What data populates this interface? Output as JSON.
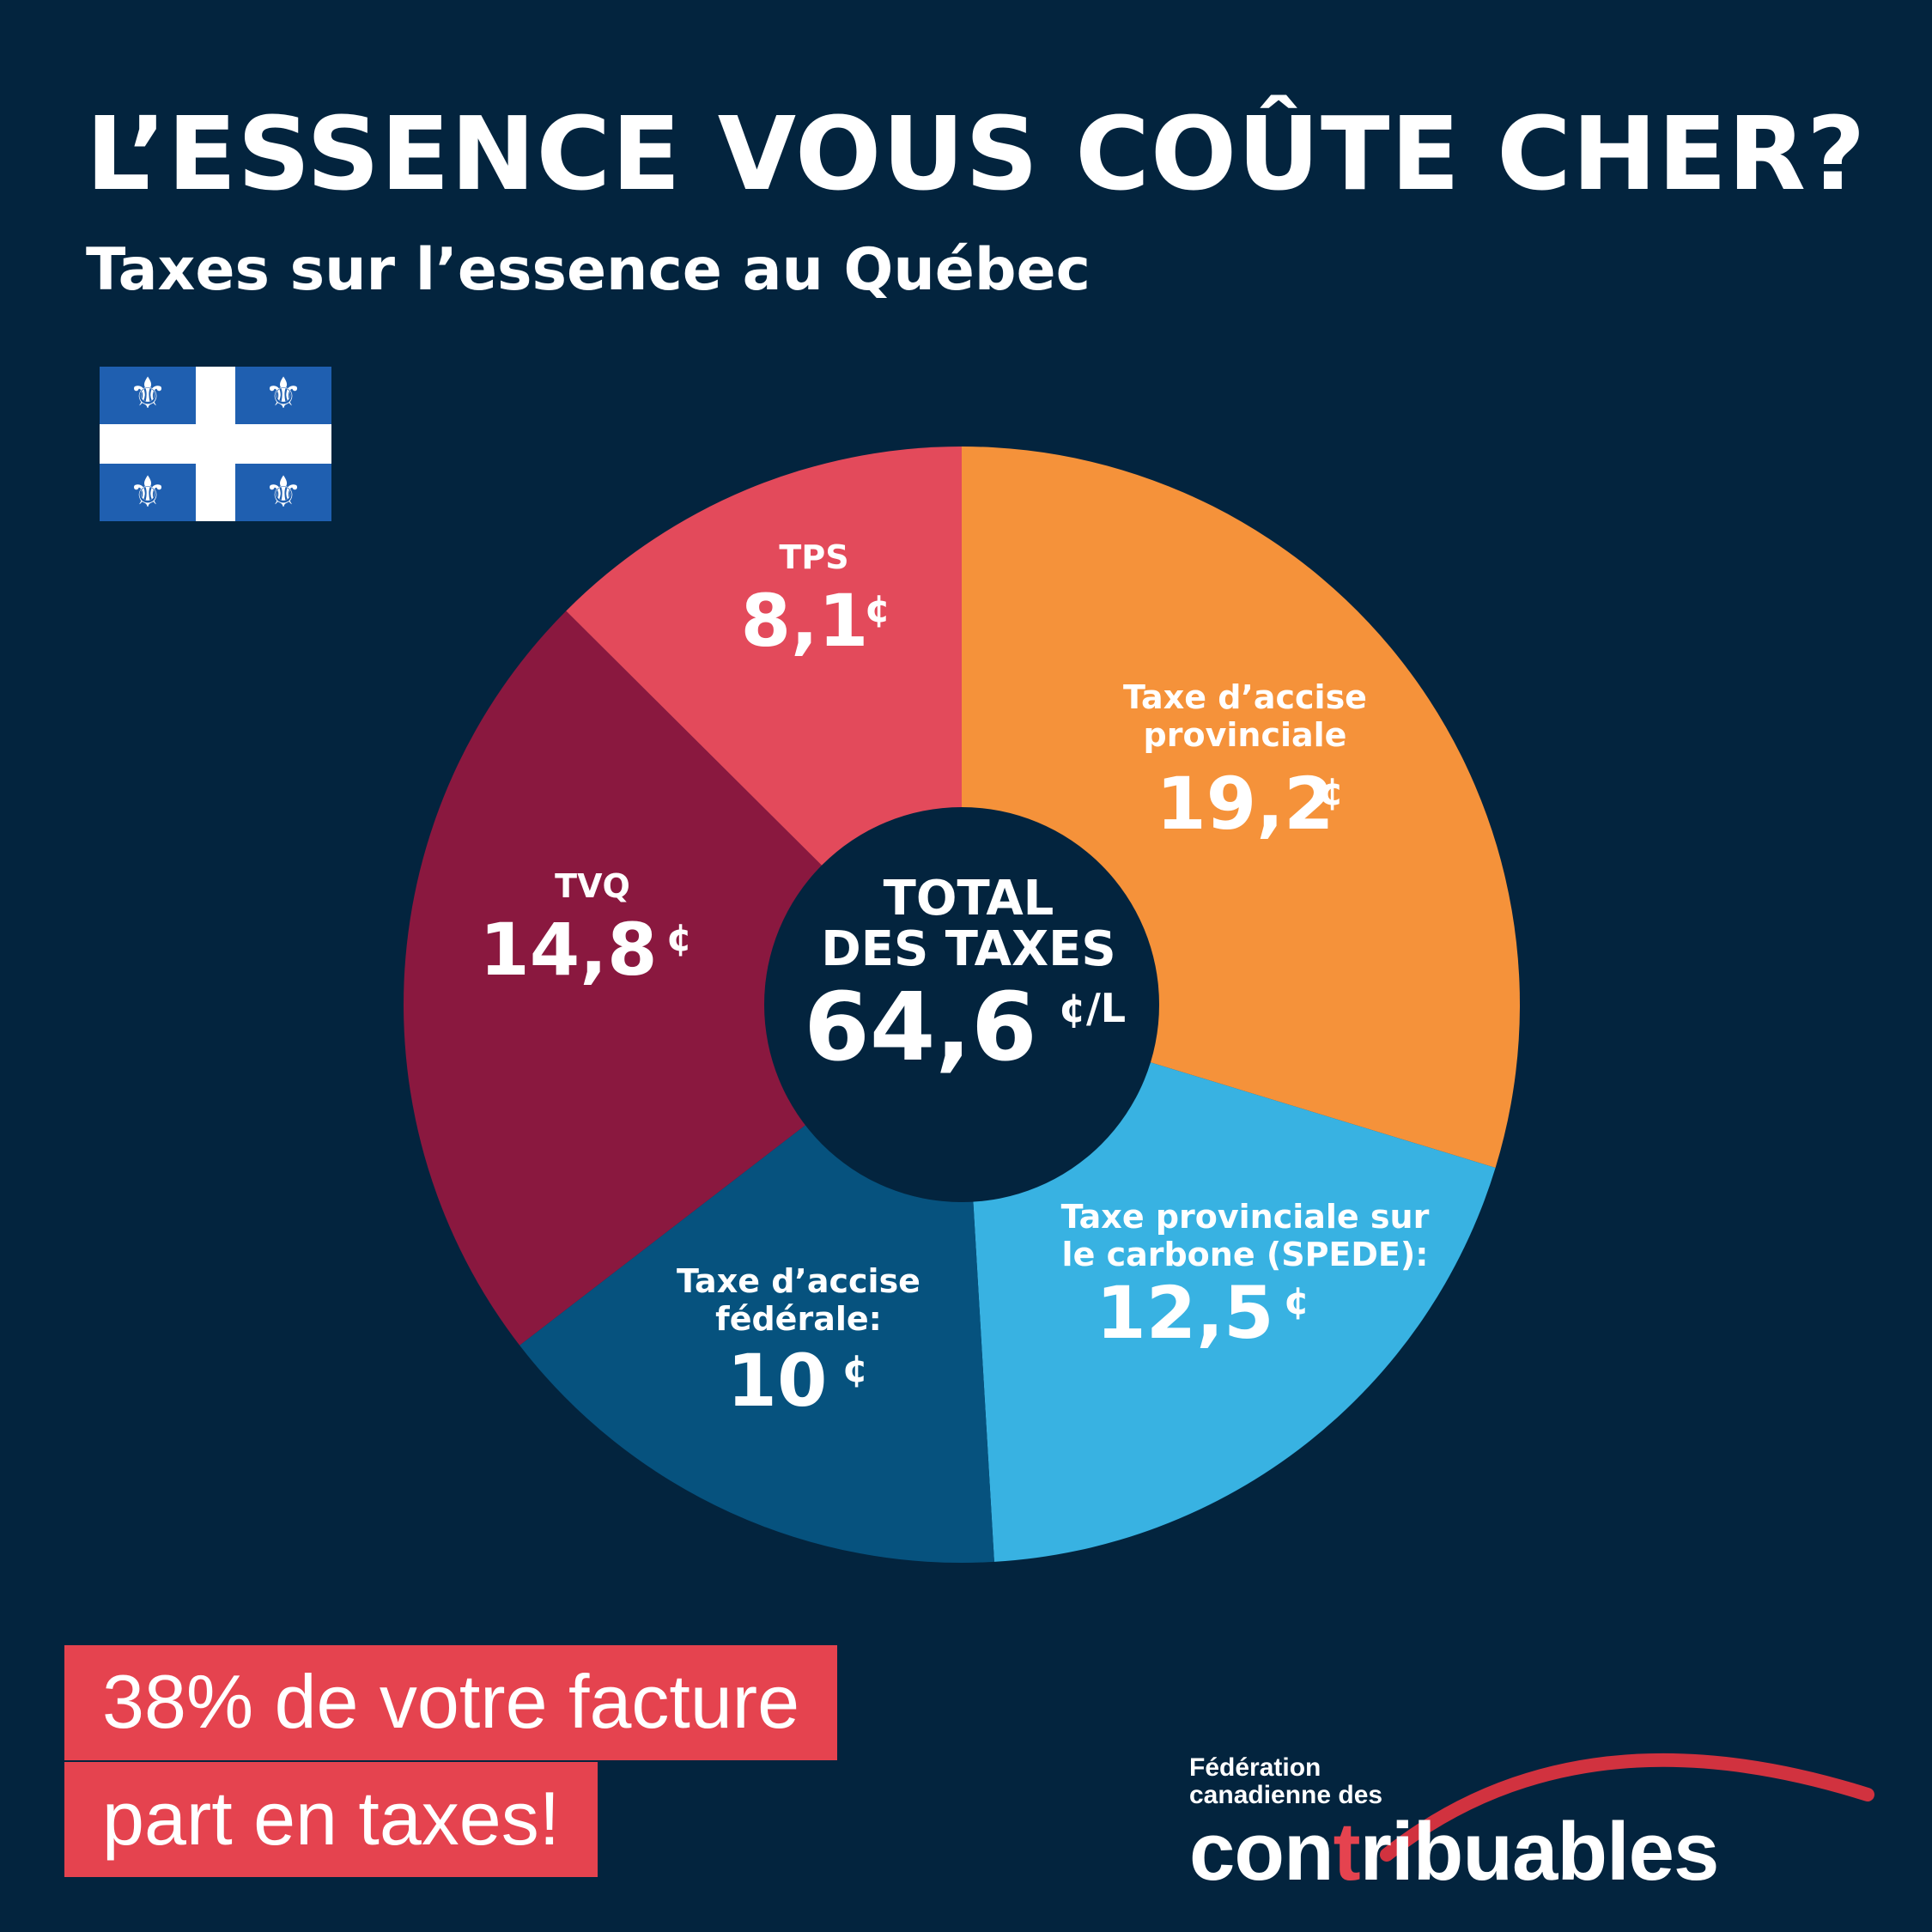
{
  "header": {
    "title": "L’ESSENCE VOUS COÛTE CHER?",
    "subtitle": "Taxes sur l’essence au Québec"
  },
  "flag_icon": "quebec-flag-icon",
  "colors": {
    "background": "#03243e",
    "accent_red": "#e5434f",
    "orange": "#f5923a",
    "light_blue": "#38b2e2",
    "dark_blue": "#06527e",
    "burgundy": "#8a183f",
    "pink_red": "#e34a5b"
  },
  "chart_data": {
    "type": "pie",
    "unit": "¢",
    "slices": [
      {
        "label": [
          "Taxe d’accise",
          "provinciale"
        ],
        "value": 19.2,
        "value_text": "19,2",
        "color": "#f5923a"
      },
      {
        "label": [
          "Taxe provinciale sur",
          "le carbone (SPEDE):"
        ],
        "value": 12.5,
        "value_text": "12,5",
        "color": "#38b2e2"
      },
      {
        "label": [
          "Taxe d’accise",
          "fédérale:"
        ],
        "value": 10,
        "value_text": "10",
        "color": "#06527e"
      },
      {
        "label": [
          "TVQ"
        ],
        "value": 14.8,
        "value_text": "14,8",
        "color": "#8a183f"
      },
      {
        "label": [
          "TPS"
        ],
        "value": 8.1,
        "value_text": "8,1",
        "color": "#e34a5b"
      }
    ],
    "center": {
      "line1": "TOTAL",
      "line2": "DES TAXES",
      "value": "64,6",
      "unit": "¢/L"
    }
  },
  "banner": {
    "line1": "38% de votre facture",
    "line2": "part en taxes!"
  },
  "logo": {
    "line1": "Fédération",
    "line2": "canadienne des",
    "word_part1": "con",
    "word_red": "t",
    "word_part2": "ribuables"
  }
}
